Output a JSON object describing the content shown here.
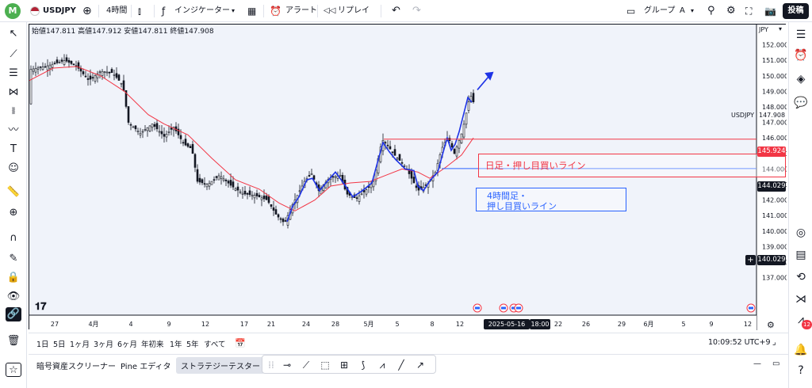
{
  "topbar": {
    "avatar_letter": "M",
    "symbol": "USDJPY",
    "interval": "4時間",
    "indicators": "インジケーター",
    "alert": "アラート",
    "replay": "リプレイ",
    "group": "グループ",
    "group_letter": "A",
    "publish": "投稿"
  },
  "ohlc": {
    "open_label": "始値",
    "open": "147.811",
    "high_label": "高値",
    "high": "147.912",
    "low_label": "安値",
    "low": "147.811",
    "close_label": "終値",
    "close": "147.908"
  },
  "chart_data": {
    "type": "candlestick",
    "currency": "JPY",
    "symbol_tag": "USDJPY",
    "ylim": [
      136.9,
      152.6
    ],
    "price_ticks": [
      "152.000",
      "151.000",
      "150.000",
      "149.000",
      "148.000",
      "147.000",
      "146.000",
      "145.000",
      "144.000",
      "143.000",
      "142.000",
      "141.000",
      "140.000",
      "139.000",
      "138.000",
      "137.000"
    ],
    "current_price": "147.908",
    "price_labels": {
      "red_line": "145.924",
      "blue_line": "144.029",
      "crosshair": "140.029"
    },
    "date_ticks": [
      "27",
      "4月",
      "4",
      "9",
      "12",
      "17",
      "21",
      "24",
      "28",
      "5月",
      "5",
      "8",
      "12",
      "22",
      "26",
      "29",
      "6月",
      "5",
      "9",
      "12"
    ],
    "crosshair_date": "2025-05-16 (金)",
    "crosshair_time": "18:00",
    "annotations": {
      "daily": "日足・押し目買いライン",
      "h4_line1": "4時間足・",
      "h4_line2": "押し目買いライン"
    },
    "colors": {
      "red": "#f23645",
      "blue": "#2962ff",
      "candle": "#131722",
      "ma": "#f23645",
      "trend": "#1e33e6"
    }
  },
  "timeframes": [
    "1日",
    "5日",
    "1ヶ月",
    "3ヶ月",
    "6ヶ月",
    "年初来",
    "1年",
    "5年",
    "すべて"
  ],
  "clock": "10:09:52 UTC+9",
  "panels": [
    "暗号資産スクリーナー",
    "Pine エディタ",
    "ストラテジーテスター"
  ],
  "notifications_count": "12"
}
